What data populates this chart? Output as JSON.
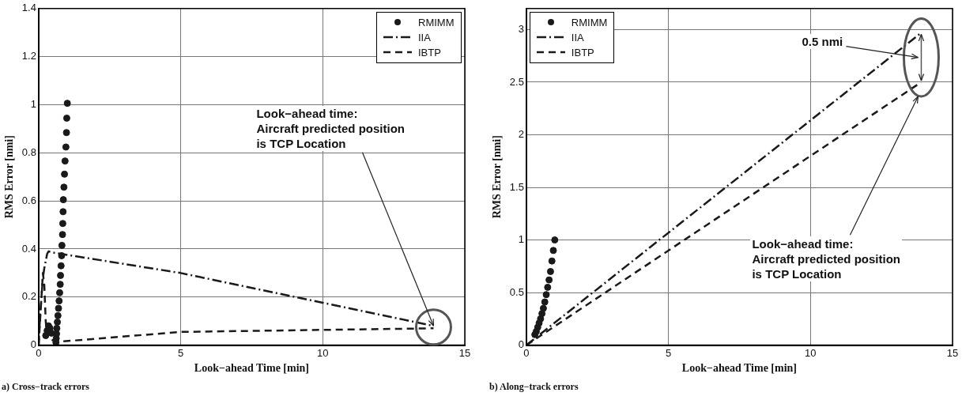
{
  "chart_data": [
    {
      "type": "line",
      "xlabel": "Look−ahead Time [min]",
      "ylabel": "RMS Error [nmi]",
      "xlim": [
        0,
        15
      ],
      "xticks": [
        0,
        5,
        10,
        15
      ],
      "ylim": [
        0,
        1.4
      ],
      "yticks": [
        0,
        0.2,
        0.4,
        0.6,
        0.8,
        1,
        1.2,
        1.4
      ],
      "grid": true,
      "legend": "top right",
      "series": [
        {
          "name": "RMIMM",
          "type": "scatter",
          "marker": "circle",
          "color": "#1a1a1a",
          "x": [
            0.25,
            0.3,
            0.35,
            0.4,
            0.45,
            0.61,
            0.62,
            0.63,
            0.64,
            0.66,
            0.68,
            0.7,
            0.72,
            0.74,
            0.76,
            0.77,
            0.79,
            0.81,
            0.82,
            0.84,
            0.85,
            0.86,
            0.87,
            0.89,
            0.91,
            0.93,
            0.96,
            0.98,
            0.99,
            1.01
          ],
          "values": [
            0.04,
            0.06,
            0.08,
            0.07,
            0.05,
            0.011,
            0.028,
            0.047,
            0.07,
            0.096,
            0.123,
            0.153,
            0.184,
            0.218,
            0.253,
            0.29,
            0.33,
            0.372,
            0.415,
            0.46,
            0.506,
            0.555,
            0.605,
            0.657,
            0.711,
            0.766,
            0.824,
            0.884,
            0.944,
            1.006
          ]
        },
        {
          "name": "IIA",
          "type": "line",
          "line_style": "dashdot",
          "color": "#1a1a1a",
          "x": [
            0,
            0.05,
            0.1,
            0.15,
            0.2,
            0.3,
            0.35,
            0.5,
            5,
            13.9
          ],
          "values": [
            0,
            0.12,
            0.2,
            0.28,
            0.32,
            0.38,
            0.39,
            0.385,
            0.3,
            0.08
          ]
        },
        {
          "name": "IBTP",
          "type": "line",
          "line_style": "dashed",
          "color": "#1a1a1a",
          "x": [
            0,
            0.05,
            0.1,
            0.15,
            0.2,
            0.25,
            0.3,
            0.5,
            0.8,
            5,
            13.9
          ],
          "values": [
            0,
            0.1,
            0.2,
            0.3,
            0.25,
            0.1,
            0.03,
            0.02,
            0.015,
            0.055,
            0.07
          ]
        }
      ],
      "annotations": [
        {
          "text": "Look−ahead time:\nAircraft predicted position\nis TCP Location",
          "x": 13.9,
          "y": 0.08
        },
        "a) Cross−track errors"
      ]
    },
    {
      "type": "line",
      "xlabel": "Look−ahead Time [min]",
      "ylabel": "RMS Error [nmi]",
      "xlim": [
        0,
        15
      ],
      "xticks": [
        0,
        5,
        10,
        15
      ],
      "ylim": [
        0,
        3.2
      ],
      "yticks": [
        0,
        0.5,
        1,
        1.5,
        2,
        2.5,
        3
      ],
      "grid": true,
      "legend": "top left",
      "series": [
        {
          "name": "RMIMM",
          "type": "scatter",
          "marker": "circle",
          "color": "#1a1a1a",
          "x": [
            0.3,
            0.35,
            0.4,
            0.45,
            0.5,
            0.55,
            0.6,
            0.65,
            0.7,
            0.75,
            0.8,
            0.85,
            0.9,
            0.95,
            1.0
          ],
          "values": [
            0.1,
            0.13,
            0.17,
            0.21,
            0.25,
            0.3,
            0.35,
            0.41,
            0.48,
            0.55,
            0.62,
            0.7,
            0.8,
            0.9,
            1.0
          ]
        },
        {
          "name": "IIA",
          "type": "line",
          "line_style": "dashdot",
          "color": "#1a1a1a",
          "x": [
            0,
            13.9
          ],
          "values": [
            0,
            2.97
          ]
        },
        {
          "name": "IBTP",
          "type": "line",
          "line_style": "dashed",
          "color": "#1a1a1a",
          "x": [
            0,
            13.9
          ],
          "values": [
            0,
            2.5
          ]
        }
      ],
      "annotations": [
        "0.5 nmi",
        "Look−ahead time:\nAircraft predicted position\nis TCP Location",
        "b) Along−track errors"
      ]
    }
  ]
}
